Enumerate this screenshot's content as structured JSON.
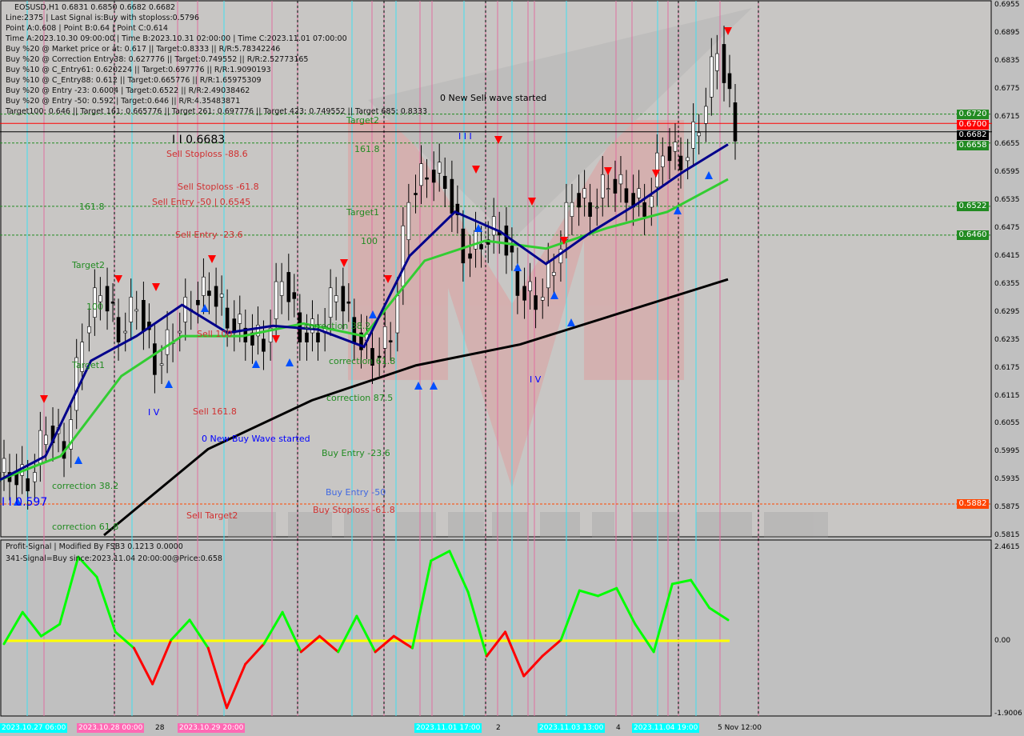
{
  "header": {
    "symbol_line": "EOSUSD,H1  0.6831 0.6850 0.6682 0.6682",
    "info_lines": [
      "Line:2375 | Last Signal is:Buy with stoploss:0.5796",
      "Point A:0.608 | Point B:0.64 | Point C:0.614",
      "Time A:2023.10.30 09:00:00 | Time B:2023.10.31 02:00:00 | Time C:2023.11.01 07:00:00",
      "Buy %20 @ Market price or at: 0.617 || Target:0.8333 || R/R:5.78342246",
      "Buy %20 @ Correction Entry38: 0.627776 || Target:0.749552 || R/R:2.52773165",
      "Buy %10 @ C_Entry61: 0.620224 || Target:0.697776 || R/R:1.9090193",
      "Buy %10 @ C_Entry88: 0.612 || Target:0.665776 || R/R:1.65975309",
      "Buy %20 @ Entry -23: 0.6004 | Target:0.6522 || R/R:2.49038462",
      "Buy %20 @ Entry -50: 0.592 | Target:0.646 || R/R:4.35483871",
      "Target100: 0.646 || Target 161: 0.665776 || Target 261: 0.697776 || Target 423: 0.749552 || Target 685: 0.8333"
    ]
  },
  "indicator": {
    "title": "Profit-Signal | Modified By FSB3 0.1213 0.0000",
    "signal": "341-Signal=Buy since:2023.11.04 20:00:00@Price:0.658"
  },
  "colors": {
    "bg": "#c0c0c0",
    "ma_fast": "#00008b",
    "ma_mid": "#32cd32",
    "ma_slow": "#000000",
    "osc_up": "#00ff00",
    "osc_down": "#ff0000",
    "zero": "#ffff00"
  },
  "chart_data": [
    {
      "type": "candlestick",
      "title": "EOSUSD,H1",
      "ylim": [
        0.5815,
        0.6955
      ],
      "y_ticks": [
        "0.6955",
        "0.6895",
        "0.6835",
        "0.6775",
        "0.6715",
        "0.6655",
        "0.6595",
        "0.6535",
        "0.6475",
        "0.6415",
        "0.6355",
        "0.6295",
        "0.6235",
        "0.6175",
        "0.6115",
        "0.6055",
        "0.5995",
        "0.5935",
        "0.5875",
        "0.5815"
      ],
      "x_ticks": [
        "2023.10.27 06:00",
        "2023.10.28 00:00",
        "28",
        "2023.10.29 20:00",
        "2023.11.01 17:00",
        "2",
        "2023.11.03 13:00",
        "4",
        "2023.11.04 19:00",
        "5 Nov 12:00"
      ],
      "close": [
        0.595,
        0.593,
        0.605,
        0.6,
        0.625,
        0.635,
        0.625,
        0.632,
        0.618,
        0.625,
        0.632,
        0.635,
        0.628,
        0.625,
        0.623,
        0.638,
        0.625,
        0.625,
        0.635,
        0.625,
        0.62,
        0.625,
        0.655,
        0.66,
        0.658,
        0.642,
        0.645,
        0.648,
        0.635,
        0.632,
        0.64,
        0.655,
        0.652,
        0.658,
        0.655,
        0.652,
        0.665,
        0.662,
        0.67,
        0.687,
        0.6682
      ],
      "ma_fast": [
        0.5934,
        0.5985,
        0.619,
        0.6243,
        0.631,
        0.625,
        0.6265,
        0.6257,
        0.622,
        0.6415,
        0.651,
        0.6467,
        0.6398,
        0.6467,
        0.6527,
        0.6595,
        0.6655
      ],
      "ma_mid": [
        0.5934,
        0.5985,
        0.6157,
        0.6243,
        0.6243,
        0.627,
        0.6243,
        0.6405,
        0.6448,
        0.6431,
        0.6475,
        0.651,
        0.658
      ],
      "ma_slow": [
        0.5815,
        0.6,
        0.6105,
        0.618,
        0.6225,
        0.6295,
        0.6365
      ],
      "levels": [
        {
          "value": "0.6720",
          "color": "#228b22"
        },
        {
          "value": "0.6700",
          "color": "#ff0000"
        },
        {
          "value": "0.6682",
          "color": "#000000"
        },
        {
          "value": "0.6658",
          "color": "#228b22"
        },
        {
          "value": "0.6522",
          "color": "#228b22"
        },
        {
          "value": "0.6460",
          "color": "#228b22"
        },
        {
          "value": "0.5882",
          "color": "#ff4500"
        }
      ],
      "annotations": [
        "0 New Sell wave started",
        "Target2",
        "161.8",
        "Target1",
        "100",
        "Sell Stoploss -88.6",
        "Sell Stoploss -61.8",
        "Sell Entry -50 | 0.6545",
        "Sell Entry -23.6",
        "161.8",
        "Target2",
        "100",
        "Target1",
        "Sell 100",
        "Sell 161.8",
        "0 New Buy Wave started",
        "Sell Target2",
        "correction 38.2",
        "correction 61.8",
        "correction 87.5",
        "Buy Entry -23.6",
        "Buy Entry -50",
        "Buy Stoploss -61.8",
        "correction 38.2",
        "correction 61.8",
        "I I 0.597",
        "I I 0.6683",
        "I V",
        "I V",
        "I I I"
      ]
    },
    {
      "type": "line",
      "title": "Profit-Signal",
      "ylim": [
        -1.9006,
        2.4615
      ],
      "y_ticks": [
        "2.4615",
        "0.00",
        "-1.9006"
      ],
      "values": [
        -0.08,
        0.74,
        0.12,
        0.43,
        2.17,
        1.65,
        0.23,
        -0.19,
        -1.13,
        0.02,
        0.54,
        -0.19,
        -1.75,
        -0.61,
        -0.08,
        0.74,
        -0.29,
        0.12,
        -0.29,
        0.64,
        -0.29,
        0.12,
        -0.19,
        2.07,
        2.32,
        1.26,
        -0.4,
        0.23,
        -0.92,
        -0.4,
        0.02,
        1.3,
        1.16,
        1.36,
        0.43,
        -0.29,
        1.47,
        1.57,
        0.85,
        0.54
      ]
    }
  ]
}
